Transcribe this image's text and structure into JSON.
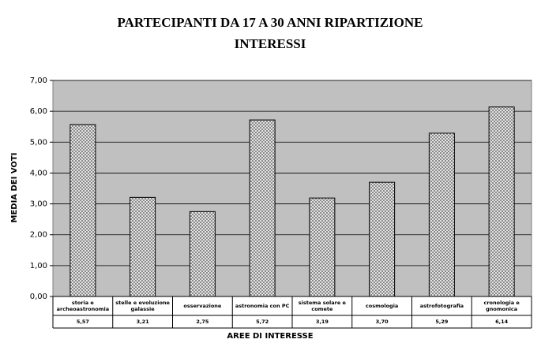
{
  "chart_data": {
    "type": "bar",
    "title": "PARTECIPANTI DA 17 A 30 ANNI   RIPARTIZIONE INTERESSI",
    "ylabel": "MEDIA DEI VOTI",
    "xlabel": "AREE DI INTERESSE",
    "categories": [
      "storia e archeoastronomia",
      "stelle e evoluzione galassie",
      "osservazione",
      "astronomia con PC",
      "sistema solare e comete",
      "cosmologia",
      "astrofotografia",
      "cronologia e gnomonica"
    ],
    "values": [
      5.57,
      3.21,
      2.75,
      5.72,
      3.19,
      3.7,
      5.29,
      6.14
    ],
    "value_labels": [
      "5,57",
      "3,21",
      "2,75",
      "5,72",
      "3,19",
      "3,70",
      "5,29",
      "6,14"
    ],
    "ylim": [
      0,
      7
    ],
    "yticks": [
      {
        "value": 0,
        "label": "0,00"
      },
      {
        "value": 1,
        "label": "1,00"
      },
      {
        "value": 2,
        "label": "2,00"
      },
      {
        "value": 3,
        "label": "3,00"
      },
      {
        "value": 4,
        "label": "4,00"
      },
      {
        "value": 5,
        "label": "5,00"
      },
      {
        "value": 6,
        "label": "6,00"
      },
      {
        "value": 7,
        "label": "7,00"
      }
    ],
    "grid": true,
    "color": "#c0c0c0"
  }
}
